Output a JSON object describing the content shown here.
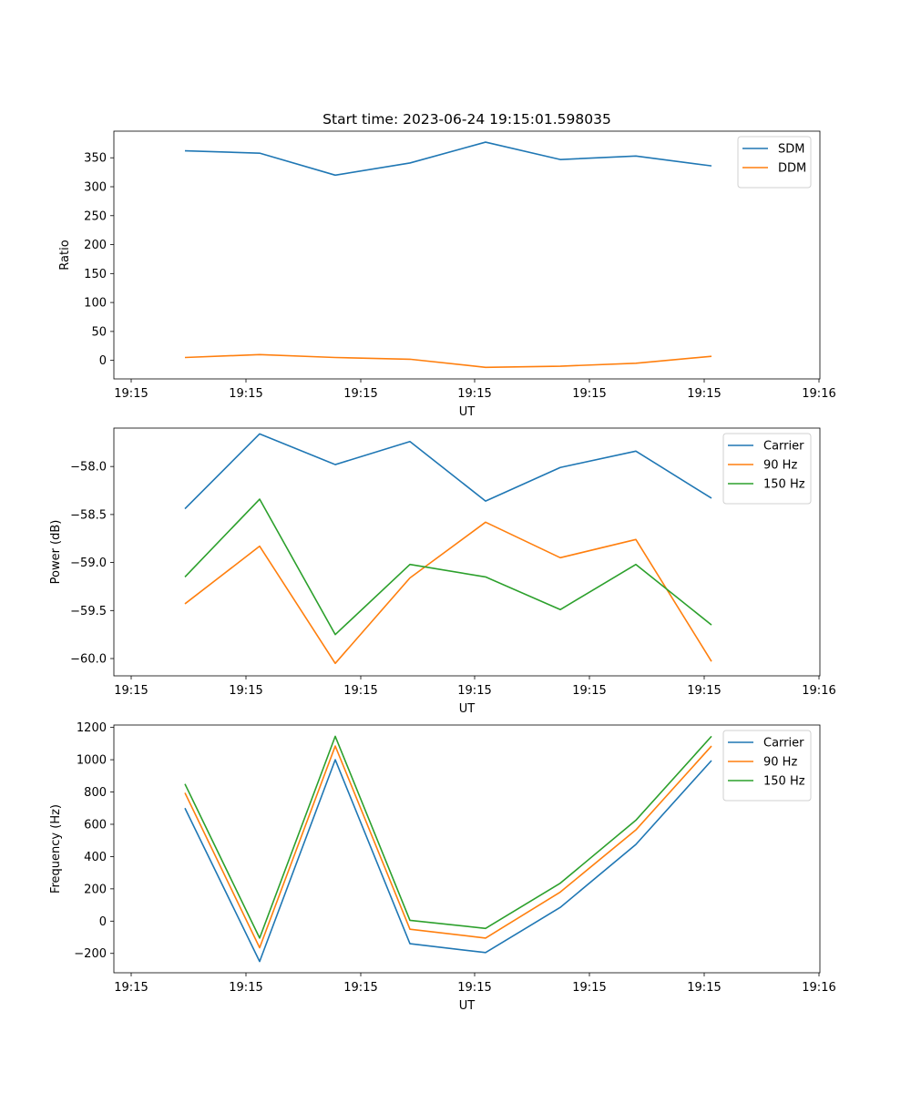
{
  "chart_data": [
    {
      "type": "line",
      "title": "Start time: 2023-06-24 19:15:01.598035",
      "xlabel": "UT",
      "ylabel": "Ratio",
      "x_tick_labels": [
        "19:15",
        "19:15",
        "19:15",
        "19:15",
        "19:15",
        "19:15",
        "19:16"
      ],
      "ylim": [
        -32,
        396
      ],
      "y_ticks": [
        0,
        50,
        100,
        150,
        200,
        250,
        300,
        350
      ],
      "y_tick_labels": [
        "0",
        "50",
        "100",
        "150",
        "200",
        "250",
        "300",
        "350"
      ],
      "legend": "top-right",
      "series": [
        {
          "name": "SDM",
          "color": "#1f77b4",
          "values": [
            362,
            358,
            320,
            341,
            377,
            347,
            353,
            336
          ]
        },
        {
          "name": "DDM",
          "color": "#ff7f0e",
          "values": [
            5,
            10,
            5,
            2,
            -12,
            -10,
            -5,
            7
          ]
        }
      ]
    },
    {
      "type": "line",
      "title": "",
      "xlabel": "UT",
      "ylabel": "Power (dB)",
      "x_tick_labels": [
        "19:15",
        "19:15",
        "19:15",
        "19:15",
        "19:15",
        "19:15",
        "19:16"
      ],
      "ylim": [
        -60.18,
        -57.6
      ],
      "y_ticks": [
        -60.0,
        -59.5,
        -59.0,
        -58.5,
        -58.0
      ],
      "y_tick_labels": [
        "−60.0",
        "−59.5",
        "−59.0",
        "−58.5",
        "−58.0"
      ],
      "legend": "top-right",
      "series": [
        {
          "name": "Carrier",
          "color": "#1f77b4",
          "values": [
            -58.44,
            -57.66,
            -57.98,
            -57.74,
            -58.36,
            -58.01,
            -57.84,
            -58.33
          ]
        },
        {
          "name": "90 Hz",
          "color": "#ff7f0e",
          "values": [
            -59.43,
            -58.83,
            -60.05,
            -59.16,
            -58.58,
            -58.95,
            -58.76,
            -60.03
          ]
        },
        {
          "name": "150 Hz",
          "color": "#2ca02c",
          "values": [
            -59.15,
            -58.34,
            -59.75,
            -59.02,
            -59.15,
            -59.49,
            -59.02,
            -59.65
          ]
        }
      ]
    },
    {
      "type": "line",
      "title": "",
      "xlabel": "UT",
      "ylabel": "Frequency (Hz)",
      "x_tick_labels": [
        "19:15",
        "19:15",
        "19:15",
        "19:15",
        "19:15",
        "19:15",
        "19:16"
      ],
      "ylim": [
        -320,
        1215
      ],
      "y_ticks": [
        -200,
        0,
        200,
        400,
        600,
        800,
        1000,
        1200
      ],
      "y_tick_labels": [
        "−200",
        "0",
        "200",
        "400",
        "600",
        "800",
        "1000",
        "1200"
      ],
      "legend": "top-right",
      "series": [
        {
          "name": "Carrier",
          "color": "#1f77b4",
          "values": [
            700,
            -250,
            1000,
            -140,
            -195,
            85,
            475,
            995
          ]
        },
        {
          "name": "90 Hz",
          "color": "#ff7f0e",
          "values": [
            795,
            -165,
            1085,
            -50,
            -105,
            180,
            565,
            1085
          ]
        },
        {
          "name": "150 Hz",
          "color": "#2ca02c",
          "values": [
            850,
            -105,
            1145,
            5,
            -45,
            235,
            625,
            1145
          ]
        }
      ]
    }
  ]
}
